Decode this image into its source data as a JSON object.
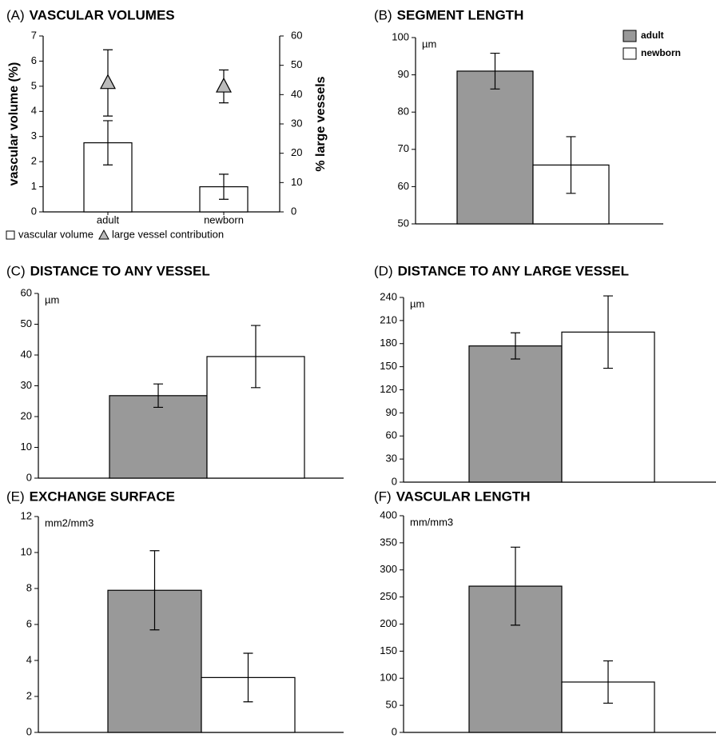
{
  "chart_data": [
    {
      "type": "bar",
      "panel": "(A)",
      "title": "VASCULAR VOLUMES",
      "y_label": "vascular volume (%)",
      "y2_label": "% large vessels",
      "categories": [
        "adult",
        "newborn"
      ],
      "series": [
        {
          "name": "vascular volume",
          "marker": "square",
          "color": "#ffffff",
          "values": [
            2.75,
            1.0
          ],
          "errors": [
            0.88,
            0.5
          ]
        },
        {
          "name": "large vessel contribution",
          "marker": "triangle",
          "axis": "y2",
          "color": "#bbbbbb",
          "values": [
            44,
            42.8
          ],
          "errors": [
            11.3,
            5.6
          ]
        }
      ],
      "ylim": [
        0,
        7
      ],
      "yticks": [
        0,
        1,
        2,
        3,
        4,
        5,
        6,
        7
      ],
      "y2lim": [
        0,
        60
      ],
      "y2ticks": [
        0,
        10,
        20,
        30,
        40,
        50,
        60
      ],
      "legend": "bottom"
    },
    {
      "type": "bar",
      "panel": "(B)",
      "title": "SEGMENT LENGTH",
      "unit": "µm",
      "series": [
        {
          "name": "adult",
          "color": "#999999",
          "values": [
            91
          ],
          "errors": [
            4.8
          ]
        },
        {
          "name": "newborn",
          "color": "#ffffff",
          "values": [
            65.8
          ],
          "errors": [
            7.6
          ]
        }
      ],
      "ylim": [
        50,
        100
      ],
      "yticks": [
        50,
        60,
        70,
        80,
        90,
        100
      ],
      "legend": "upper right"
    },
    {
      "type": "bar",
      "panel": "(C)",
      "title": "DISTANCE TO ANY VESSEL",
      "unit": "µm",
      "values": [
        26.8,
        39.5
      ],
      "errors": [
        3.8,
        10.1
      ],
      "colors": [
        "#999999",
        "#ffffff"
      ],
      "ylim": [
        0,
        60
      ],
      "yticks": [
        0,
        10,
        20,
        30,
        40,
        50,
        60
      ]
    },
    {
      "type": "bar",
      "panel": "(D)",
      "title": "DISTANCE TO ANY LARGE VESSEL",
      "unit": "µm",
      "values": [
        177,
        195
      ],
      "errors": [
        17,
        47
      ],
      "colors": [
        "#999999",
        "#ffffff"
      ],
      "ylim": [
        0,
        240
      ],
      "yticks": [
        0,
        30,
        60,
        90,
        120,
        150,
        180,
        210,
        240
      ]
    },
    {
      "type": "bar",
      "panel": "(E)",
      "title": "EXCHANGE SURFACE",
      "unit": "mm2/mm3",
      "values": [
        7.9,
        3.05
      ],
      "errors": [
        2.2,
        1.35
      ],
      "colors": [
        "#999999",
        "#ffffff"
      ],
      "ylim": [
        0,
        12
      ],
      "yticks": [
        0,
        2,
        4,
        6,
        8,
        10,
        12
      ]
    },
    {
      "type": "bar",
      "panel": "(F)",
      "title": "VASCULAR LENGTH",
      "unit": "mm/mm3",
      "values": [
        270,
        93
      ],
      "errors": [
        72,
        39
      ],
      "colors": [
        "#999999",
        "#ffffff"
      ],
      "ylim": [
        0,
        400
      ],
      "yticks": [
        0,
        50,
        100,
        150,
        200,
        250,
        300,
        350,
        400
      ]
    }
  ]
}
